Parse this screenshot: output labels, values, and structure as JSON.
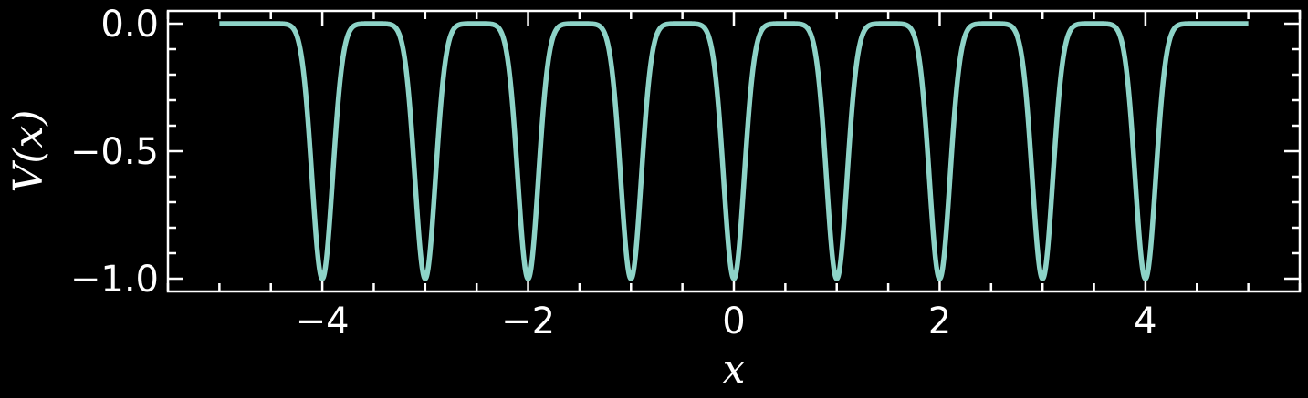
{
  "chart_data": {
    "type": "line",
    "xlabel": "x",
    "ylabel": "V(x)",
    "xlim": [
      -5.5,
      5.5
    ],
    "ylim": [
      -1.05,
      0.05
    ],
    "x_ticks": [
      {
        "value": -4,
        "label": "−4"
      },
      {
        "value": -2,
        "label": "−2"
      },
      {
        "value": 0,
        "label": "0"
      },
      {
        "value": 2,
        "label": "2"
      },
      {
        "value": 4,
        "label": "4"
      }
    ],
    "y_ticks": [
      {
        "value": 0.0,
        "label": "0.0"
      },
      {
        "value": -0.5,
        "label": "−0.5"
      },
      {
        "value": -1.0,
        "label": "−1.0"
      }
    ],
    "x_minor_step": 0.5,
    "y_minor_step": 0.1,
    "grid": false,
    "series": [
      {
        "color": "#8dd3c7",
        "x_range": [
          -5,
          5
        ],
        "well_centers": [
          -4,
          -3,
          -2,
          -1,
          0,
          1,
          2,
          3,
          4
        ],
        "well_depth": -1.0,
        "well_width_sigma": 0.1
      }
    ]
  }
}
